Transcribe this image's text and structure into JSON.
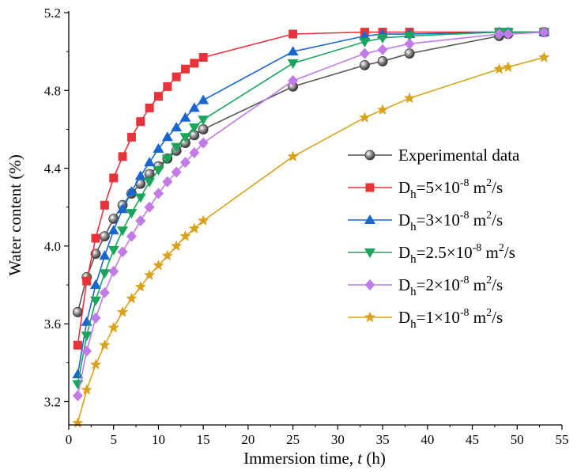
{
  "chart_data": {
    "type": "line",
    "title": "",
    "xlabel_prefix": "Immersion time, ",
    "xlabel_var": "t",
    "xlabel_suffix": " (h)",
    "ylabel": "Water content (%)",
    "xlim": [
      0,
      55
    ],
    "ylim": [
      3.08,
      5.2
    ],
    "x_ticks": [
      0,
      5,
      10,
      15,
      20,
      25,
      30,
      35,
      40,
      45,
      50,
      55
    ],
    "x_tick_labels": [
      "0",
      "5",
      "10",
      "15",
      "20",
      "25",
      "30",
      "35",
      "40",
      "45",
      "50",
      "55"
    ],
    "y_ticks": [
      3.2,
      3.6,
      4.0,
      4.4,
      4.8,
      5.2
    ],
    "y_tick_labels": [
      "3.2",
      "3.6",
      "4.0",
      "4.4",
      "4.8",
      "5.2"
    ],
    "grid": false,
    "legend_position": "center-right",
    "series": [
      {
        "name": "Experimental data",
        "label_main": "Experimental data",
        "label_sub": "",
        "label_sup": "",
        "label_tail": "",
        "color": "#555555",
        "marker": "sphere",
        "x": [
          1,
          2,
          3,
          4,
          5,
          6,
          7,
          8,
          9,
          10,
          11,
          12,
          13,
          14,
          15,
          25,
          33,
          35,
          38,
          48,
          49,
          53
        ],
        "y": [
          3.66,
          3.84,
          3.96,
          4.05,
          4.14,
          4.21,
          4.27,
          4.32,
          4.37,
          4.41,
          4.45,
          4.49,
          4.53,
          4.57,
          4.6,
          4.82,
          4.93,
          4.95,
          4.99,
          5.08,
          5.09,
          5.1
        ]
      },
      {
        "name": "Dh=5×10-8 m2/s",
        "label_main": "D",
        "label_sub": "h",
        "label_mid": "=5×10",
        "label_sup": "-8",
        "label_tail": " m",
        "label_sup2": "2",
        "label_end": "/s",
        "color": "#e8333a",
        "marker": "square",
        "x": [
          1,
          2,
          3,
          4,
          5,
          6,
          7,
          8,
          9,
          10,
          11,
          12,
          13,
          14,
          15,
          25,
          33,
          35,
          38,
          48,
          49,
          53
        ],
        "y": [
          3.49,
          3.82,
          4.04,
          4.21,
          4.35,
          4.46,
          4.56,
          4.64,
          4.71,
          4.77,
          4.82,
          4.87,
          4.91,
          4.94,
          4.97,
          5.09,
          5.1,
          5.1,
          5.1,
          5.1,
          5.1,
          5.1
        ]
      },
      {
        "name": "Dh=3×10-8 m2/s",
        "label_main": "D",
        "label_sub": "h",
        "label_mid": "=3×10",
        "label_sup": "-8",
        "label_tail": " m",
        "label_sup2": "2",
        "label_end": "/s",
        "color": "#1a66d1",
        "marker": "triangle-up",
        "x": [
          1,
          2,
          3,
          4,
          5,
          6,
          7,
          8,
          9,
          10,
          11,
          12,
          13,
          14,
          15,
          25,
          33,
          35,
          38,
          48,
          49,
          53
        ],
        "y": [
          3.34,
          3.61,
          3.8,
          3.95,
          4.08,
          4.19,
          4.28,
          4.36,
          4.43,
          4.5,
          4.56,
          4.61,
          4.66,
          4.71,
          4.75,
          5.0,
          5.08,
          5.09,
          5.09,
          5.1,
          5.1,
          5.1
        ]
      },
      {
        "name": "Dh=2.5×10-8 m2/s",
        "label_main": "D",
        "label_sub": "h",
        "label_mid": "=2.5×10",
        "label_sup": "-8",
        "label_tail": " m",
        "label_sup2": "2",
        "label_end": "/s",
        "color": "#1aa65a",
        "marker": "triangle-down",
        "x": [
          1,
          2,
          3,
          4,
          5,
          6,
          7,
          8,
          9,
          10,
          11,
          12,
          13,
          14,
          15,
          25,
          33,
          35,
          38,
          48,
          49,
          53
        ],
        "y": [
          3.29,
          3.54,
          3.72,
          3.86,
          3.98,
          4.08,
          4.17,
          4.25,
          4.33,
          4.39,
          4.45,
          4.51,
          4.56,
          4.61,
          4.65,
          4.94,
          5.05,
          5.07,
          5.08,
          5.1,
          5.1,
          5.1
        ]
      },
      {
        "name": "Dh=2×10-8 m2/s",
        "label_main": "D",
        "label_sub": "h",
        "label_mid": "=2×10",
        "label_sup": "-8",
        "label_tail": " m",
        "label_sup2": "2",
        "label_end": "/s",
        "color": "#c27ae6",
        "marker": "diamond",
        "x": [
          1,
          2,
          3,
          4,
          5,
          6,
          7,
          8,
          9,
          10,
          11,
          12,
          13,
          14,
          15,
          25,
          33,
          35,
          38,
          48,
          49,
          53
        ],
        "y": [
          3.23,
          3.46,
          3.63,
          3.76,
          3.87,
          3.97,
          4.05,
          4.13,
          4.2,
          4.27,
          4.33,
          4.38,
          4.43,
          4.48,
          4.53,
          4.85,
          4.99,
          5.01,
          5.04,
          5.09,
          5.09,
          5.1
        ]
      },
      {
        "name": "Dh=1×10-8 m2/s",
        "label_main": "D",
        "label_sub": "h",
        "label_mid": "=1×10",
        "label_sup": "-8",
        "label_tail": " m",
        "label_sup2": "2",
        "label_end": "/s",
        "color": "#d9a21a",
        "marker": "star",
        "x": [
          1,
          2,
          3,
          4,
          5,
          6,
          7,
          8,
          9,
          10,
          11,
          12,
          13,
          14,
          15,
          25,
          33,
          35,
          38,
          48,
          49,
          53
        ],
        "y": [
          3.09,
          3.26,
          3.39,
          3.49,
          3.58,
          3.66,
          3.73,
          3.79,
          3.85,
          3.9,
          3.95,
          4.0,
          4.05,
          4.09,
          4.13,
          4.46,
          4.66,
          4.7,
          4.76,
          4.91,
          4.92,
          4.97
        ]
      }
    ]
  }
}
